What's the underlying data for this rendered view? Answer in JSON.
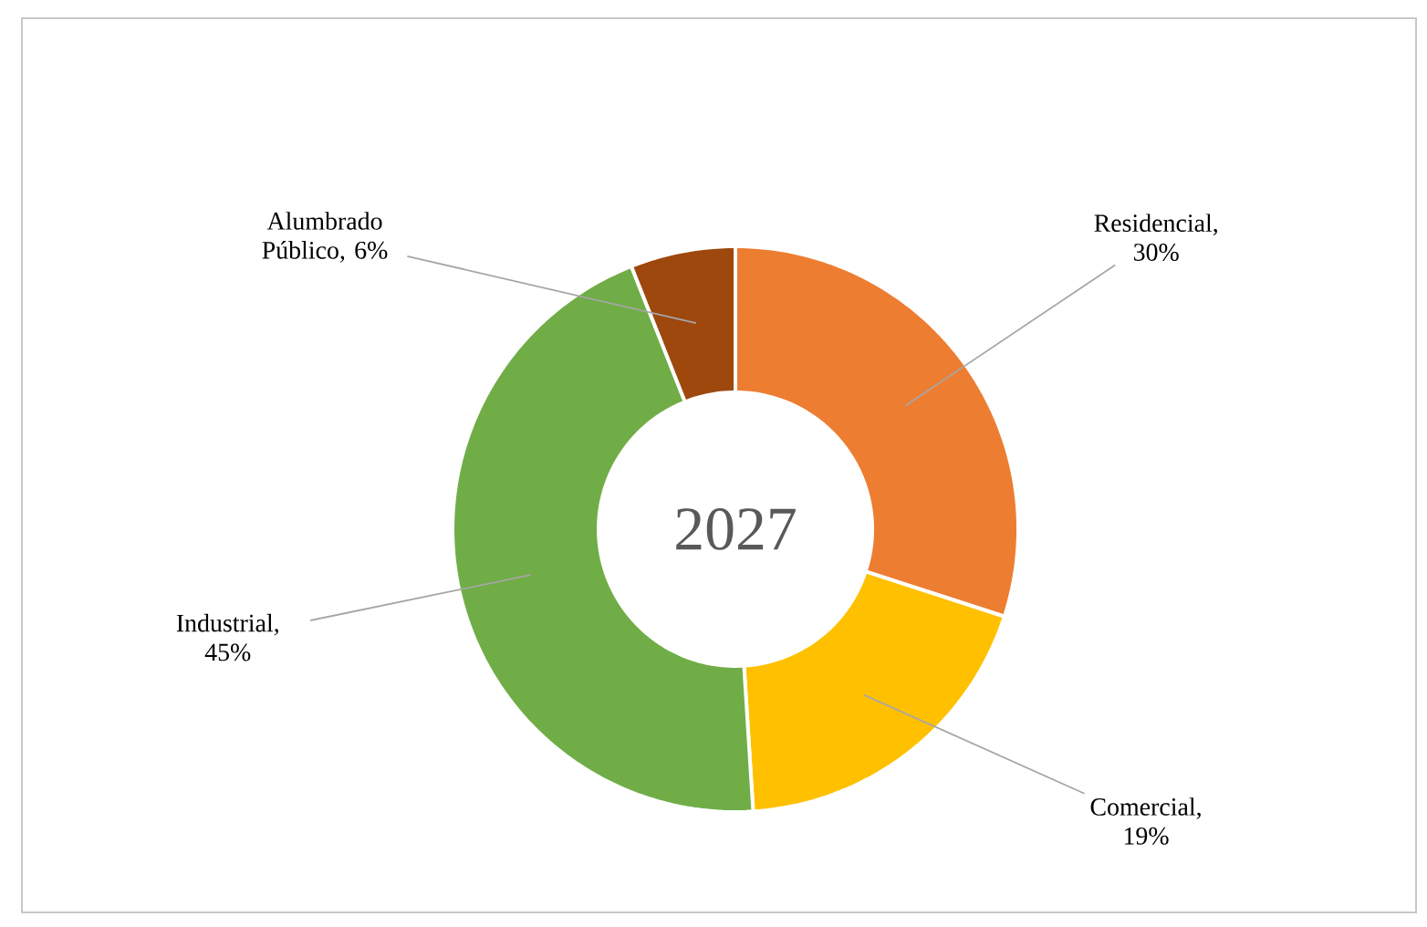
{
  "chart_data": {
    "type": "donut",
    "title": "2027",
    "categories": [
      "Residencial",
      "Comercial",
      "Industrial",
      "Alumbrado Público"
    ],
    "values": [
      30,
      19,
      45,
      6
    ],
    "colors": [
      "#ed7d31",
      "#ffc000",
      "#70ad47",
      "#9e480e"
    ],
    "value_labels": [
      ", 30%",
      ", 19%",
      ", 45%",
      ", 6%"
    ],
    "data_labels": true,
    "legend": false
  }
}
